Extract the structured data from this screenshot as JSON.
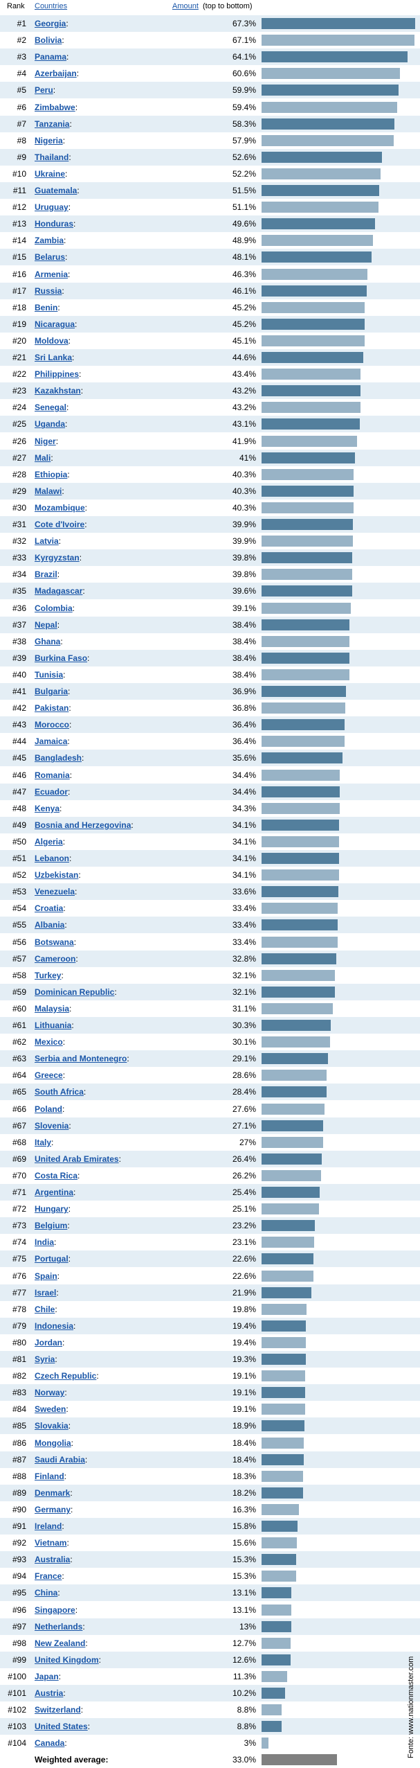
{
  "headers": {
    "rank": "Rank",
    "countries": "Countries",
    "amount": "Amount",
    "note": "(top to bottom)"
  },
  "colors": {
    "bar_dark": "#537f9d",
    "bar_light": "#98b3c6",
    "avg_bar": "#808080",
    "link": "#1a56a8",
    "row_alt": "#e4eef5"
  },
  "chart_data": {
    "type": "bar",
    "orientation": "horizontal",
    "unit": "%",
    "xlim": [
      0,
      67.3
    ],
    "grid": false,
    "categories": [
      "Georgia",
      "Bolivia",
      "Panama",
      "Azerbaijan",
      "Peru",
      "Zimbabwe",
      "Tanzania",
      "Nigeria",
      "Thailand",
      "Ukraine",
      "Guatemala",
      "Uruguay",
      "Honduras",
      "Zambia",
      "Belarus",
      "Armenia",
      "Russia",
      "Benin",
      "Nicaragua",
      "Moldova",
      "Sri Lanka",
      "Philippines",
      "Kazakhstan",
      "Senegal",
      "Uganda",
      "Niger",
      "Mali",
      "Ethiopia",
      "Malawi",
      "Mozambique",
      "Cote d'Ivoire",
      "Latvia",
      "Kyrgyzstan",
      "Brazil",
      "Madagascar",
      "Colombia",
      "Nepal",
      "Ghana",
      "Burkina Faso",
      "Tunisia",
      "Bulgaria",
      "Pakistan",
      "Morocco",
      "Jamaica",
      "Bangladesh",
      "Romania",
      "Ecuador",
      "Kenya",
      "Bosnia and Herzegovina",
      "Algeria",
      "Lebanon",
      "Uzbekistan",
      "Venezuela",
      "Croatia",
      "Albania",
      "Botswana",
      "Cameroon",
      "Turkey",
      "Dominican Republic",
      "Malaysia",
      "Lithuania",
      "Mexico",
      "Serbia and Montenegro",
      "Greece",
      "South Africa",
      "Poland",
      "Slovenia",
      "Italy",
      "United Arab Emirates",
      "Costa Rica",
      "Argentina",
      "Hungary",
      "Belgium",
      "India",
      "Portugal",
      "Spain",
      "Israel",
      "Chile",
      "Indonesia",
      "Jordan",
      "Syria",
      "Czech Republic",
      "Norway",
      "Sweden",
      "Slovakia",
      "Mongolia",
      "Saudi Arabia",
      "Finland",
      "Denmark",
      "Germany",
      "Ireland",
      "Vietnam",
      "Australia",
      "France",
      "China",
      "Singapore",
      "Netherlands",
      "New Zealand",
      "United Kingdom",
      "Japan",
      "Austria",
      "Switzerland",
      "United States",
      "Canada"
    ],
    "values": [
      67.3,
      67.1,
      64.1,
      60.6,
      59.9,
      59.4,
      58.3,
      57.9,
      52.6,
      52.2,
      51.5,
      51.1,
      49.6,
      48.9,
      48.1,
      46.3,
      46.1,
      45.2,
      45.2,
      45.1,
      44.6,
      43.4,
      43.2,
      43.2,
      43.1,
      41.9,
      41,
      40.3,
      40.3,
      40.3,
      39.9,
      39.9,
      39.8,
      39.8,
      39.6,
      39.1,
      38.4,
      38.4,
      38.4,
      38.4,
      36.9,
      36.8,
      36.4,
      36.4,
      35.6,
      34.4,
      34.4,
      34.3,
      34.1,
      34.1,
      34.1,
      34.1,
      33.6,
      33.4,
      33.4,
      33.4,
      32.8,
      32.1,
      32.1,
      31.1,
      30.3,
      30.1,
      29.1,
      28.6,
      28.4,
      27.6,
      27.1,
      27,
      26.4,
      26.2,
      25.4,
      25.1,
      23.2,
      23.1,
      22.6,
      22.6,
      21.9,
      19.8,
      19.4,
      19.4,
      19.3,
      19.1,
      19.1,
      19.1,
      18.9,
      18.4,
      18.4,
      18.3,
      18.2,
      16.3,
      15.8,
      15.6,
      15.3,
      15.3,
      13.1,
      13.1,
      13,
      12.7,
      12.6,
      11.3,
      10.2,
      8.8,
      8.8,
      3
    ],
    "labels": [
      "67.3%",
      "67.1%",
      "64.1%",
      "60.6%",
      "59.9%",
      "59.4%",
      "58.3%",
      "57.9%",
      "52.6%",
      "52.2%",
      "51.5%",
      "51.1%",
      "49.6%",
      "48.9%",
      "48.1%",
      "46.3%",
      "46.1%",
      "45.2%",
      "45.2%",
      "45.1%",
      "44.6%",
      "43.4%",
      "43.2%",
      "43.2%",
      "43.1%",
      "41.9%",
      "41%",
      "40.3%",
      "40.3%",
      "40.3%",
      "39.9%",
      "39.9%",
      "39.8%",
      "39.8%",
      "39.6%",
      "39.1%",
      "38.4%",
      "38.4%",
      "38.4%",
      "38.4%",
      "36.9%",
      "36.8%",
      "36.4%",
      "36.4%",
      "35.6%",
      "34.4%",
      "34.4%",
      "34.3%",
      "34.1%",
      "34.1%",
      "34.1%",
      "34.1%",
      "33.6%",
      "33.4%",
      "33.4%",
      "33.4%",
      "32.8%",
      "32.1%",
      "32.1%",
      "31.1%",
      "30.3%",
      "30.1%",
      "29.1%",
      "28.6%",
      "28.4%",
      "27.6%",
      "27.1%",
      "27%",
      "26.4%",
      "26.2%",
      "25.4%",
      "25.1%",
      "23.2%",
      "23.1%",
      "22.6%",
      "22.6%",
      "21.9%",
      "19.8%",
      "19.4%",
      "19.4%",
      "19.3%",
      "19.1%",
      "19.1%",
      "19.1%",
      "18.9%",
      "18.4%",
      "18.4%",
      "18.3%",
      "18.2%",
      "16.3%",
      "15.8%",
      "15.6%",
      "15.3%",
      "15.3%",
      "13.1%",
      "13.1%",
      "13%",
      "12.7%",
      "12.6%",
      "11.3%",
      "10.2%",
      "8.8%",
      "8.8%",
      "3%"
    ],
    "average": {
      "label": "Weighted average:",
      "value": 33.0,
      "display": "33.0%"
    }
  },
  "source": "Fonte: www.nationmaster.com"
}
